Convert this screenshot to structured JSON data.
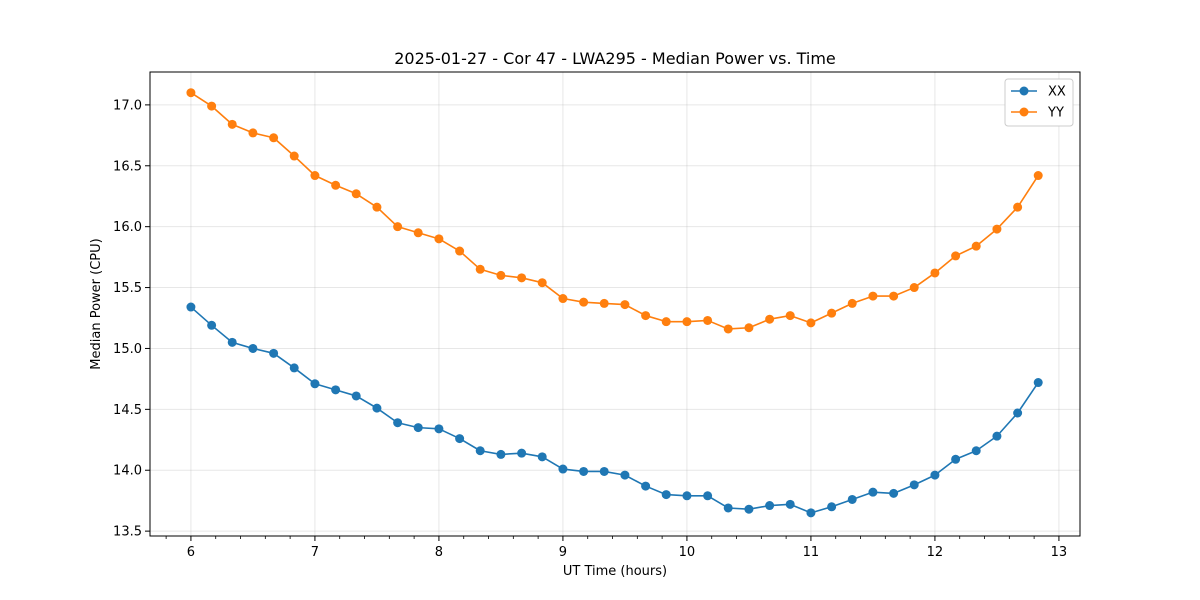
{
  "chart_data": {
    "type": "line",
    "title": "2025-01-27 - Cor 47 - LWA295 - Median Power vs. Time",
    "xlabel": "UT Time (hours)",
    "ylabel": "Median Power (CPU)",
    "xlim": [
      5.67,
      13.17
    ],
    "ylim": [
      13.46,
      17.27
    ],
    "xticks": [
      6,
      7,
      8,
      9,
      10,
      11,
      12,
      13
    ],
    "xtick_labels": [
      "6",
      "7",
      "8",
      "9",
      "10",
      "11",
      "12",
      "13"
    ],
    "yticks": [
      13.5,
      14.0,
      14.5,
      15.0,
      15.5,
      16.0,
      16.5,
      17.0
    ],
    "ytick_labels": [
      "13.5",
      "14.0",
      "14.5",
      "15.0",
      "15.5",
      "16.0",
      "16.5",
      "17.0"
    ],
    "grid": true,
    "legend_position": "top-right",
    "x": [
      6.0,
      6.167,
      6.333,
      6.5,
      6.667,
      6.833,
      7.0,
      7.167,
      7.333,
      7.5,
      7.667,
      7.833,
      8.0,
      8.167,
      8.333,
      8.5,
      8.667,
      8.833,
      9.0,
      9.167,
      9.333,
      9.5,
      9.667,
      9.833,
      10.0,
      10.167,
      10.333,
      10.5,
      10.667,
      10.833,
      11.0,
      11.167,
      11.333,
      11.5,
      11.667,
      11.833,
      12.0,
      12.167,
      12.333,
      12.5,
      12.667,
      12.833
    ],
    "series": [
      {
        "name": "XX",
        "color": "#1f77b4",
        "values": [
          15.34,
          15.19,
          15.05,
          15.0,
          14.96,
          14.84,
          14.71,
          14.66,
          14.61,
          14.51,
          14.39,
          14.35,
          14.34,
          14.26,
          14.16,
          14.13,
          14.14,
          14.11,
          14.01,
          13.99,
          13.99,
          13.96,
          13.87,
          13.8,
          13.79,
          13.79,
          13.69,
          13.68,
          13.71,
          13.72,
          13.65,
          13.7,
          13.76,
          13.82,
          13.81,
          13.88,
          13.96,
          14.09,
          14.16,
          14.28,
          14.47,
          14.72
        ]
      },
      {
        "name": "YY",
        "color": "#ff7f0e",
        "values": [
          17.1,
          16.99,
          16.84,
          16.77,
          16.73,
          16.58,
          16.42,
          16.34,
          16.27,
          16.16,
          16.0,
          15.95,
          15.9,
          15.8,
          15.65,
          15.6,
          15.58,
          15.54,
          15.41,
          15.38,
          15.37,
          15.36,
          15.27,
          15.22,
          15.22,
          15.23,
          15.16,
          15.17,
          15.24,
          15.27,
          15.21,
          15.29,
          15.37,
          15.43,
          15.43,
          15.5,
          15.62,
          15.76,
          15.84,
          15.98,
          16.16,
          16.42
        ]
      }
    ]
  }
}
